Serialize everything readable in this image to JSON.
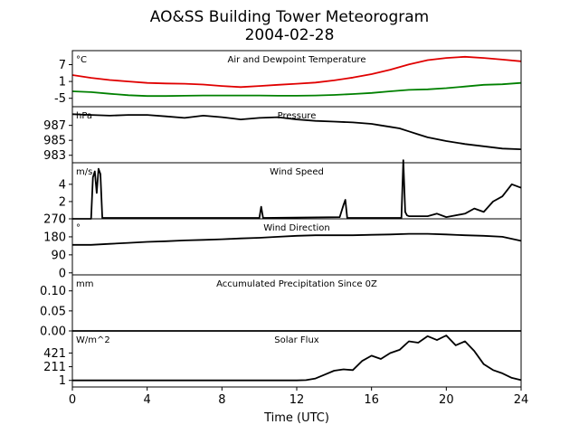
{
  "figure": {
    "title_line1": "AO&SS Building Tower Meteorogram",
    "title_line2": "2004-02-28",
    "xlabel": "Time (UTC)"
  },
  "chart_data": {
    "type": "line",
    "x_axis": {
      "label": "Time (UTC)",
      "range": [
        0,
        24
      ],
      "ticks": [
        0,
        4,
        8,
        12,
        16,
        20,
        24
      ]
    },
    "panels": [
      {
        "id": "temperature",
        "title": "Air and Dewpoint Temperature",
        "unit": "°C",
        "ylim": [
          -8,
          12
        ],
        "yticks": [
          -5,
          1,
          7
        ],
        "series": [
          {
            "color": "#e00000",
            "x": [
              0,
              1,
              2,
              3,
              4,
              5,
              6,
              7,
              8,
              9,
              10,
              11,
              12,
              13,
              14,
              15,
              16,
              17,
              18,
              19,
              20,
              21,
              22,
              23,
              24
            ],
            "y": [
              3.3,
              2.3,
              1.5,
              1.0,
              0.5,
              0.3,
              0.2,
              -0.1,
              -0.6,
              -1.0,
              -0.6,
              -0.2,
              0.2,
              0.6,
              1.4,
              2.4,
              3.6,
              5.2,
              7.1,
              8.6,
              9.4,
              9.8,
              9.4,
              8.8,
              8.2
            ]
          },
          {
            "color": "#008000",
            "x": [
              0,
              1,
              2,
              3,
              4,
              5,
              6,
              7,
              8,
              9,
              10,
              11,
              12,
              13,
              14,
              15,
              16,
              17,
              18,
              19,
              20,
              21,
              22,
              23,
              24
            ],
            "y": [
              -2.5,
              -2.8,
              -3.4,
              -3.9,
              -4.2,
              -4.2,
              -4.1,
              -4.0,
              -4.0,
              -4.0,
              -4.0,
              -4.1,
              -4.1,
              -4.0,
              -3.8,
              -3.5,
              -3.1,
              -2.5,
              -2.0,
              -1.8,
              -1.4,
              -0.8,
              -0.2,
              0.0,
              0.5
            ]
          }
        ]
      },
      {
        "id": "pressure",
        "title": "Pressure",
        "unit": "hPa",
        "ylim": [
          982,
          989.5
        ],
        "yticks": [
          983,
          985,
          987
        ],
        "series": [
          {
            "color": "#000000",
            "x": [
              0,
              1,
              2,
              3,
              4,
              5,
              6,
              7,
              8,
              9,
              10,
              11,
              12,
              13,
              14,
              15,
              16,
              16.5,
              17,
              17.5,
              18,
              18.5,
              19,
              20,
              21,
              22,
              23,
              24
            ],
            "y": [
              988.5,
              988.4,
              988.3,
              988.4,
              988.4,
              988.2,
              988.0,
              988.3,
              988.1,
              987.8,
              988.0,
              988.1,
              987.8,
              987.6,
              987.5,
              987.4,
              987.2,
              987.0,
              986.8,
              986.6,
              986.2,
              985.8,
              985.4,
              984.9,
              984.5,
              984.2,
              983.9,
              983.8
            ]
          }
        ]
      },
      {
        "id": "wind_speed",
        "title": "Wind Speed",
        "unit": "m/s",
        "ylim": [
          0,
          6.5
        ],
        "yticks": [
          0,
          2,
          4
        ],
        "series": [
          {
            "color": "#000000",
            "x": [
              0,
              1.0,
              1.1,
              1.2,
              1.3,
              1.4,
              1.5,
              1.6,
              10.0,
              10.1,
              10.2,
              14.3,
              14.5,
              14.6,
              14.7,
              17.6,
              17.7,
              17.8,
              17.9,
              18.0,
              19.0,
              19.5,
              20.0,
              21.0,
              21.5,
              22.0,
              22.5,
              23.0,
              23.5,
              24.0
            ],
            "y": [
              0,
              0,
              4.8,
              5.5,
              3.0,
              5.8,
              5.2,
              0.1,
              0.1,
              1.4,
              0.1,
              0.2,
              1.6,
              2.2,
              0.1,
              0.1,
              6.8,
              0.8,
              0.4,
              0.3,
              0.3,
              0.6,
              0.2,
              0.6,
              1.2,
              0.8,
              2.0,
              2.6,
              4.0,
              3.6
            ]
          }
        ]
      },
      {
        "id": "wind_direction",
        "title": "Wind Direction",
        "unit": "°",
        "ylim": [
          -10,
          270
        ],
        "yticks": [
          0,
          90,
          180,
          270
        ],
        "series": [
          {
            "color": "#000000",
            "x": [
              0,
              1,
              2,
              3,
              4,
              5,
              6,
              7,
              8,
              9,
              10,
              11,
              12,
              13,
              14,
              15,
              16,
              17,
              18,
              19,
              20,
              21,
              22,
              23,
              24
            ],
            "y": [
              140,
              140,
              145,
              150,
              155,
              158,
              162,
              165,
              168,
              172,
              175,
              180,
              185,
              188,
              188,
              188,
              190,
              192,
              195,
              195,
              192,
              188,
              185,
              180,
              160
            ]
          }
        ]
      },
      {
        "id": "precipitation",
        "title": "Accumulated Precipitation Since 0Z",
        "unit": "mm",
        "ylim": [
          0,
          0.14
        ],
        "yticks": [
          0.0,
          0.05,
          0.1
        ],
        "series": [
          {
            "color": "#000000",
            "x": [
              0,
              24
            ],
            "y": [
              0,
              0
            ]
          }
        ]
      },
      {
        "id": "solar_flux",
        "title": "Solar Flux",
        "unit": "W/m^2",
        "ylim": [
          -100,
          760
        ],
        "yticks": [
          1,
          211,
          421
        ],
        "series": [
          {
            "color": "#000000",
            "x": [
              0,
              12,
              12.5,
              13,
              13.5,
              14,
              14.5,
              15,
              15.5,
              16,
              16.5,
              17,
              17.5,
              18,
              18.5,
              19,
              19.5,
              20,
              20.5,
              21,
              21.5,
              22,
              22.5,
              23,
              23.5,
              24
            ],
            "y": [
              1,
              1,
              5,
              30,
              90,
              150,
              170,
              160,
              300,
              380,
              330,
              420,
              470,
              600,
              580,
              680,
              620,
              690,
              540,
              600,
              450,
              250,
              160,
              110,
              40,
              5
            ]
          }
        ]
      }
    ]
  }
}
